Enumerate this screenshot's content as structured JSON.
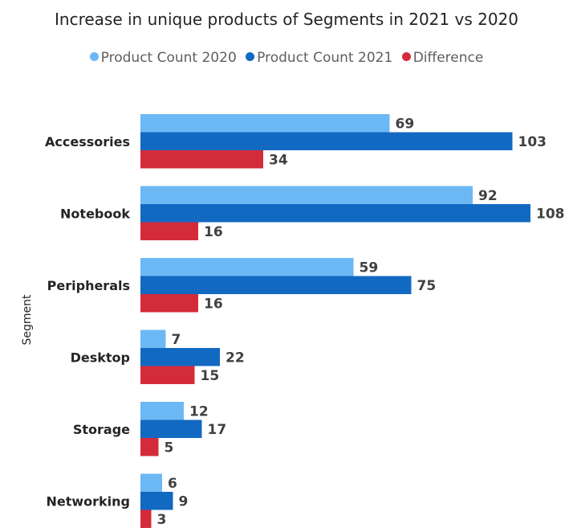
{
  "chart_data": {
    "type": "bar",
    "orientation": "horizontal",
    "title": "Increase in unique products of Segments in 2021 vs 2020",
    "ylabel": "Segment",
    "xlabel": "",
    "categories": [
      "Accessories",
      "Notebook",
      "Peripherals",
      "Desktop",
      "Storage",
      "Networking"
    ],
    "series": [
      {
        "name": "Product Count 2020",
        "color": "#6cb8f5",
        "values": [
          69,
          92,
          59,
          7,
          12,
          6
        ]
      },
      {
        "name": "Product Count 2021",
        "color": "#1269c2",
        "values": [
          103,
          108,
          75,
          22,
          17,
          9
        ]
      },
      {
        "name": "Difference",
        "color": "#d42b3a",
        "values": [
          34,
          16,
          16,
          15,
          5,
          3
        ]
      }
    ],
    "xlim": [
      0,
      108
    ],
    "grid": false,
    "legend_position": "top"
  }
}
